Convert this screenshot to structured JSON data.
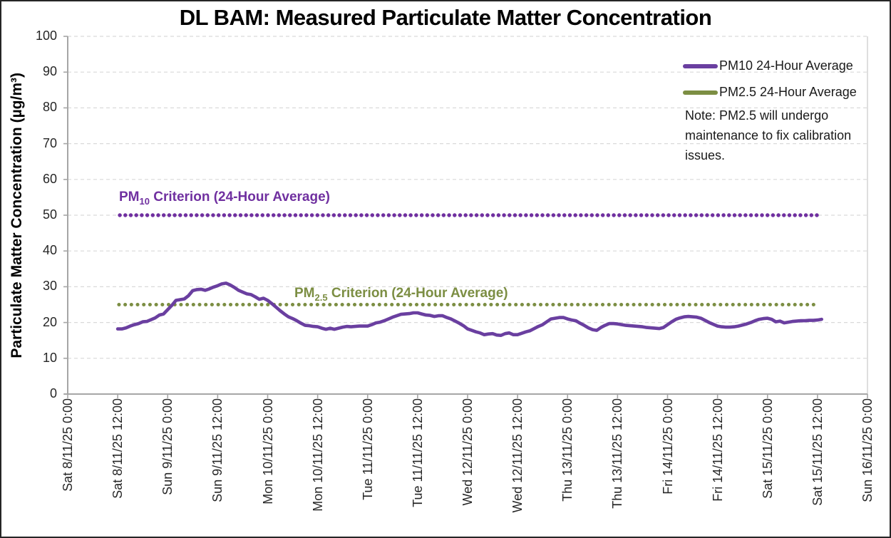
{
  "chart_data": {
    "type": "line",
    "title": "DL BAM: Measured Particulate Matter Concentration",
    "xlabel": "",
    "ylabel": "Particulate Matter Concentration (µg/m³)",
    "ylim": [
      0,
      100
    ],
    "y_ticks": [
      0,
      10,
      20,
      30,
      40,
      50,
      60,
      70,
      80,
      90,
      100
    ],
    "x_ticks": [
      "Sat 8/11/25 0:00",
      "Sat 8/11/25 12:00",
      "Sun 9/11/25 0:00",
      "Sun 9/11/25 12:00",
      "Mon 10/11/25 0:00",
      "Mon 10/11/25 12:00",
      "Tue 11/11/25 0:00",
      "Tue 11/11/25 12:00",
      "Wed 12/11/25 0:00",
      "Wed 12/11/25 12:00",
      "Thu 13/11/25 0:00",
      "Thu 13/11/25 12:00",
      "Fri 14/11/25 0:00",
      "Fri 14/11/25 12:00",
      "Sat 15/11/25 0:00",
      "Sat 15/11/25 12:00",
      "Sun 16/11/25 0:00"
    ],
    "x_hours_per_tick": 12,
    "x_total_hours": 192,
    "grid": "horizontal-dashed",
    "legend_position": "top-right",
    "note": "Note: PM2.5 will undergo maintenance to fix calibration issues.",
    "colors": {
      "pm10_series": "#6A3FA0",
      "pm10_criterion": "#7030A0",
      "pm25": "#7C8E43",
      "gridline": "#d9d9d9",
      "axis": "#a6a6a6"
    },
    "series": [
      {
        "name": "PM10 24-Hour Average",
        "color": "#6A3FA0",
        "points": [
          [
            12,
            18.2
          ],
          [
            13,
            18.2
          ],
          [
            14,
            18.5
          ],
          [
            15,
            19.0
          ],
          [
            16,
            19.4
          ],
          [
            17,
            19.7
          ],
          [
            18,
            20.2
          ],
          [
            19,
            20.3
          ],
          [
            20,
            20.8
          ],
          [
            21,
            21.3
          ],
          [
            22,
            22.1
          ],
          [
            23,
            22.4
          ],
          [
            24,
            23.6
          ],
          [
            25,
            24.8
          ],
          [
            26,
            26.2
          ],
          [
            27,
            26.4
          ],
          [
            28,
            26.6
          ],
          [
            29,
            27.5
          ],
          [
            30,
            28.9
          ],
          [
            31,
            29.2
          ],
          [
            32,
            29.3
          ],
          [
            33,
            29.0
          ],
          [
            34,
            29.4
          ],
          [
            35,
            29.9
          ],
          [
            36,
            30.3
          ],
          [
            37,
            30.8
          ],
          [
            38,
            31.0
          ],
          [
            39,
            30.5
          ],
          [
            40,
            29.8
          ],
          [
            41,
            29.0
          ],
          [
            42,
            28.5
          ],
          [
            43,
            28.0
          ],
          [
            44,
            27.8
          ],
          [
            45,
            27.2
          ],
          [
            46,
            26.5
          ],
          [
            47,
            26.8
          ],
          [
            48,
            26.2
          ],
          [
            49,
            25.3
          ],
          [
            50,
            24.3
          ],
          [
            51,
            23.3
          ],
          [
            52,
            22.4
          ],
          [
            53,
            21.6
          ],
          [
            54,
            21.1
          ],
          [
            55,
            20.5
          ],
          [
            56,
            19.8
          ],
          [
            57,
            19.2
          ],
          [
            58,
            19.1
          ],
          [
            59,
            18.9
          ],
          [
            60,
            18.8
          ],
          [
            61,
            18.4
          ],
          [
            62,
            18.1
          ],
          [
            63,
            18.4
          ],
          [
            64,
            18.1
          ],
          [
            65,
            18.4
          ],
          [
            66,
            18.7
          ],
          [
            67,
            18.9
          ],
          [
            68,
            18.8
          ],
          [
            69,
            18.9
          ],
          [
            70,
            19.0
          ],
          [
            71,
            19.0
          ],
          [
            72,
            19.0
          ],
          [
            73,
            19.4
          ],
          [
            74,
            19.9
          ],
          [
            75,
            20.1
          ],
          [
            76,
            20.5
          ],
          [
            77,
            21.0
          ],
          [
            78,
            21.5
          ],
          [
            79,
            21.9
          ],
          [
            80,
            22.3
          ],
          [
            81,
            22.4
          ],
          [
            82,
            22.5
          ],
          [
            83,
            22.7
          ],
          [
            84,
            22.7
          ],
          [
            85,
            22.4
          ],
          [
            86,
            22.1
          ],
          [
            87,
            22.0
          ],
          [
            88,
            21.7
          ],
          [
            89,
            21.9
          ],
          [
            90,
            21.9
          ],
          [
            91,
            21.4
          ],
          [
            92,
            21.0
          ],
          [
            93,
            20.4
          ],
          [
            94,
            19.8
          ],
          [
            95,
            19.1
          ],
          [
            96,
            18.2
          ],
          [
            97,
            17.8
          ],
          [
            98,
            17.4
          ],
          [
            99,
            17.1
          ],
          [
            100,
            16.6
          ],
          [
            101,
            16.8
          ],
          [
            102,
            16.9
          ],
          [
            103,
            16.5
          ],
          [
            104,
            16.4
          ],
          [
            105,
            16.9
          ],
          [
            106,
            17.1
          ],
          [
            107,
            16.6
          ],
          [
            108,
            16.6
          ],
          [
            109,
            17.0
          ],
          [
            110,
            17.4
          ],
          [
            111,
            17.7
          ],
          [
            112,
            18.3
          ],
          [
            113,
            18.9
          ],
          [
            114,
            19.4
          ],
          [
            115,
            20.2
          ],
          [
            116,
            21.0
          ],
          [
            117,
            21.2
          ],
          [
            118,
            21.4
          ],
          [
            119,
            21.4
          ],
          [
            120,
            21.0
          ],
          [
            121,
            20.7
          ],
          [
            122,
            20.5
          ],
          [
            123,
            19.8
          ],
          [
            124,
            19.2
          ],
          [
            125,
            18.5
          ],
          [
            126,
            18.0
          ],
          [
            127,
            17.8
          ],
          [
            128,
            18.6
          ],
          [
            129,
            19.2
          ],
          [
            130,
            19.7
          ],
          [
            131,
            19.7
          ],
          [
            132,
            19.6
          ],
          [
            133,
            19.4
          ],
          [
            134,
            19.2
          ],
          [
            135,
            19.1
          ],
          [
            136,
            19.0
          ],
          [
            137,
            18.9
          ],
          [
            138,
            18.8
          ],
          [
            139,
            18.6
          ],
          [
            140,
            18.5
          ],
          [
            141,
            18.4
          ],
          [
            142,
            18.3
          ],
          [
            143,
            18.6
          ],
          [
            144,
            19.4
          ],
          [
            145,
            20.2
          ],
          [
            146,
            20.9
          ],
          [
            147,
            21.3
          ],
          [
            148,
            21.6
          ],
          [
            149,
            21.7
          ],
          [
            150,
            21.6
          ],
          [
            151,
            21.5
          ],
          [
            152,
            21.2
          ],
          [
            153,
            20.6
          ],
          [
            154,
            20.0
          ],
          [
            155,
            19.5
          ],
          [
            156,
            19.0
          ],
          [
            157,
            18.8
          ],
          [
            158,
            18.7
          ],
          [
            159,
            18.7
          ],
          [
            160,
            18.8
          ],
          [
            161,
            19.0
          ],
          [
            162,
            19.3
          ],
          [
            163,
            19.6
          ],
          [
            164,
            20.0
          ],
          [
            165,
            20.5
          ],
          [
            166,
            20.9
          ],
          [
            167,
            21.1
          ],
          [
            168,
            21.2
          ],
          [
            169,
            20.9
          ],
          [
            170,
            20.2
          ],
          [
            171,
            20.4
          ],
          [
            172,
            19.9
          ],
          [
            173,
            20.1
          ],
          [
            174,
            20.3
          ],
          [
            175,
            20.4
          ],
          [
            176,
            20.5
          ],
          [
            177,
            20.5
          ],
          [
            178,
            20.6
          ],
          [
            179,
            20.6
          ],
          [
            180,
            20.7
          ],
          [
            181,
            20.9
          ]
        ]
      },
      {
        "name": "PM2.5 24-Hour Average",
        "color": "#7C8E43",
        "points": []
      }
    ],
    "reference_lines": [
      {
        "id": "pm10-criterion",
        "value": 50,
        "color": "#7030A0",
        "style": "dotted",
        "start_hour": 12.5,
        "end_hour": 181,
        "label": {
          "pre": "PM",
          "sub": "10",
          "post": " Criterion (24-Hour Average)"
        }
      },
      {
        "id": "pm25-criterion",
        "value": 25,
        "color": "#7C8E43",
        "style": "dotted",
        "start_hour": 12.3,
        "end_hour": 179.2,
        "label": {
          "pre": "PM",
          "sub": "2.5",
          "post": " Criterion (24-Hour Average)"
        }
      }
    ]
  }
}
